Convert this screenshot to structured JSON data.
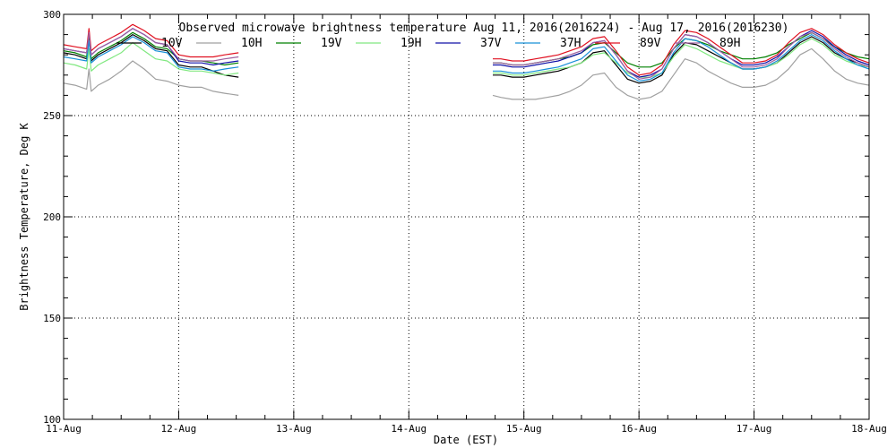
{
  "chart_data": {
    "type": "line",
    "title": "Observed microwave brightness temperature Aug 11, 2016(2016224) - Aug 17, 2016(2016230)",
    "xlabel": "Date (EST)",
    "ylabel": "Brightness Temperature, Deg K",
    "ylim": [
      100,
      300
    ],
    "xlim": [
      0,
      7
    ],
    "yticks": [
      100,
      150,
      200,
      250,
      300
    ],
    "ytick_labels": [
      "100",
      "150",
      "200",
      "250",
      "300"
    ],
    "xticks": [
      0,
      1,
      2,
      3,
      4,
      5,
      6,
      7
    ],
    "xtick_labels": [
      "11-Aug",
      "12-Aug",
      "13-Aug",
      "14-Aug",
      "15-Aug",
      "16-Aug",
      "17-Aug",
      "18-Aug"
    ],
    "grid": true,
    "legend_position": "top",
    "segments": [
      [
        0.0,
        1.52
      ],
      [
        3.73,
        7.0
      ]
    ],
    "x": [
      0.0,
      0.1,
      0.2,
      0.22,
      0.24,
      0.3,
      0.4,
      0.5,
      0.6,
      0.7,
      0.8,
      0.9,
      1.0,
      1.1,
      1.2,
      1.3,
      1.4,
      1.52,
      3.73,
      3.8,
      3.9,
      4.0,
      4.1,
      4.2,
      4.3,
      4.4,
      4.5,
      4.6,
      4.7,
      4.8,
      4.9,
      5.0,
      5.1,
      5.2,
      5.3,
      5.4,
      5.5,
      5.6,
      5.7,
      5.8,
      5.9,
      6.0,
      6.1,
      6.2,
      6.3,
      6.4,
      6.5,
      6.6,
      6.7,
      6.8,
      6.9,
      7.0
    ],
    "series": [
      {
        "name": "10V",
        "color": "#000000",
        "values": [
          281,
          280,
          278,
          288,
          277,
          280,
          283,
          286,
          290,
          287,
          283,
          282,
          275,
          274,
          274,
          272,
          270,
          269,
          270,
          270,
          269,
          269,
          270,
          271,
          272,
          274,
          276,
          281,
          282,
          275,
          268,
          266,
          267,
          270,
          280,
          286,
          285,
          282,
          279,
          276,
          273,
          273,
          274,
          276,
          281,
          286,
          289,
          286,
          281,
          278,
          276,
          274
        ]
      },
      {
        "name": "10H",
        "color": "#a0a0a0",
        "values": [
          266,
          265,
          263,
          273,
          262,
          265,
          268,
          272,
          277,
          273,
          268,
          267,
          265,
          264,
          264,
          262,
          261,
          260,
          260,
          259,
          258,
          258,
          258,
          259,
          260,
          262,
          265,
          270,
          271,
          264,
          260,
          258,
          259,
          262,
          270,
          278,
          276,
          272,
          269,
          266,
          264,
          264,
          265,
          268,
          273,
          280,
          283,
          278,
          272,
          268,
          266,
          265
        ]
      },
      {
        "name": "19V",
        "color": "#008000",
        "values": [
          282,
          281,
          279,
          289,
          278,
          281,
          284,
          287,
          291,
          288,
          284,
          283,
          278,
          277,
          277,
          276,
          275,
          276,
          276,
          276,
          275,
          275,
          276,
          277,
          278,
          279,
          281,
          285,
          286,
          281,
          276,
          274,
          274,
          276,
          283,
          288,
          287,
          285,
          282,
          280,
          278,
          278,
          279,
          281,
          285,
          288,
          291,
          288,
          284,
          281,
          279,
          278
        ]
      },
      {
        "name": "19H",
        "color": "#80e880",
        "values": [
          276,
          275,
          273,
          283,
          272,
          275,
          278,
          281,
          286,
          282,
          278,
          277,
          273,
          272,
          272,
          271,
          270,
          271,
          271,
          271,
          270,
          270,
          271,
          272,
          273,
          274,
          276,
          280,
          281,
          276,
          271,
          269,
          269,
          271,
          279,
          285,
          283,
          280,
          277,
          275,
          273,
          273,
          274,
          276,
          280,
          285,
          288,
          285,
          280,
          277,
          275,
          274
        ]
      },
      {
        "name": "37V",
        "color": "#1010a8",
        "values": [
          283,
          282,
          281,
          291,
          280,
          283,
          286,
          289,
          293,
          290,
          286,
          285,
          277,
          276,
          276,
          275,
          276,
          277,
          275,
          275,
          274,
          274,
          275,
          276,
          277,
          279,
          281,
          286,
          287,
          280,
          272,
          269,
          270,
          273,
          283,
          290,
          289,
          286,
          282,
          278,
          275,
          275,
          276,
          279,
          284,
          289,
          292,
          289,
          284,
          280,
          277,
          275
        ]
      },
      {
        "name": "37H",
        "color": "#1890d8",
        "values": [
          279,
          278,
          277,
          287,
          276,
          279,
          282,
          285,
          289,
          286,
          282,
          281,
          274,
          273,
          273,
          272,
          273,
          274,
          272,
          272,
          271,
          271,
          272,
          273,
          274,
          276,
          278,
          283,
          284,
          277,
          270,
          267,
          268,
          271,
          281,
          288,
          287,
          284,
          280,
          276,
          273,
          273,
          274,
          277,
          282,
          287,
          290,
          287,
          282,
          278,
          275,
          273
        ]
      },
      {
        "name": "89V",
        "color": "#e01020",
        "values": [
          285,
          284,
          283,
          293,
          282,
          285,
          288,
          291,
          295,
          292,
          288,
          287,
          280,
          279,
          279,
          279,
          280,
          281,
          278,
          278,
          277,
          277,
          278,
          279,
          280,
          282,
          284,
          288,
          289,
          282,
          274,
          270,
          271,
          275,
          285,
          292,
          291,
          288,
          284,
          280,
          276,
          276,
          277,
          280,
          286,
          291,
          293,
          290,
          285,
          281,
          278,
          276
        ]
      },
      {
        "name": "89H",
        "color": "#a060a0",
        "values": [
          283,
          282,
          281,
          291,
          280,
          283,
          286,
          289,
          293,
          290,
          286,
          285,
          278,
          277,
          277,
          277,
          278,
          279,
          276,
          276,
          275,
          275,
          276,
          277,
          278,
          280,
          282,
          286,
          287,
          280,
          272,
          268,
          269,
          273,
          283,
          290,
          289,
          286,
          282,
          278,
          274,
          274,
          275,
          278,
          284,
          289,
          291,
          288,
          283,
          279,
          276,
          274
        ]
      }
    ]
  }
}
